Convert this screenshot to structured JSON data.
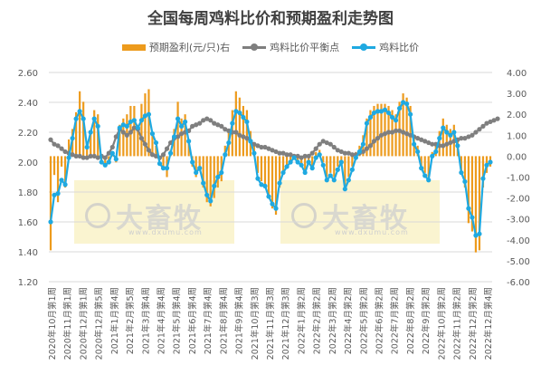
{
  "chart_data": {
    "type": "bar+line",
    "title": "全国每周鸡料比价和预期盈利走势图",
    "legend": [
      "预期盈利(元/只)右",
      "鸡料比价平衡点",
      "鸡料比价"
    ],
    "left_axis": {
      "min": 1.2,
      "max": 2.6,
      "ticks": [
        "2.60",
        "2.40",
        "2.20",
        "2.00",
        "1.80",
        "1.60",
        "1.40",
        "1.20"
      ]
    },
    "right_axis": {
      "min": -6,
      "max": 4,
      "ticks": [
        "4.00",
        "3.00",
        "2.00",
        "1.00",
        "0.00",
        "-1.00",
        "-2.00",
        "-3.00",
        "-4.00",
        "-5.00",
        "-6.00"
      ]
    },
    "x_ticks": [
      "2020年10月第1周",
      "2020年11月第1周",
      "2020年12月第1周",
      "2020年12月第5周",
      "2021年1月第4周",
      "2021年2月第5周",
      "2021年3月第4周",
      "2021年4月第4周",
      "2021年5月第4周",
      "2021年6月第4周",
      "2021年7月第4周",
      "2021年8月第4周",
      "2021年9月第4周",
      "2021年10月第3周",
      "2021年11月第3周",
      "2021年12月第3周",
      "2022年1月第2周",
      "2022年2月第2周",
      "2022年3月第2周",
      "2022年4月第2周",
      "2022年5月第2周",
      "2022年6月第2周",
      "2022年7月第2周",
      "2022年8月第2周",
      "2022年9月第2周",
      "2022年10月第2周",
      "2022年11月第2周",
      "2022年12月第2周",
      "2022年12月第4周"
    ],
    "series": [
      {
        "name": "预期盈利(元/只)右",
        "axis": "right",
        "type": "bar",
        "values": [
          -4.5,
          -0.9,
          -2.2,
          -0.5,
          -1.5,
          0.8,
          1.3,
          2.1,
          3.1,
          2.6,
          0.5,
          1.2,
          2.2,
          2.0,
          -0.2,
          -0.5,
          -0.2,
          0.0,
          -0.3,
          1.5,
          1.8,
          2.0,
          2.4,
          2.4,
          1.5,
          2.5,
          3.0,
          3.2,
          1.0,
          0.5,
          -0.2,
          -0.5,
          -1.0,
          0.3,
          1.3,
          2.6,
          1.8,
          2.0,
          0.8,
          -0.5,
          -1.0,
          -0.5,
          -1.5,
          -2.2,
          -2.4,
          -2.0,
          -1.5,
          -1.2,
          0.5,
          1.3,
          2.2,
          3.1,
          2.8,
          2.4,
          2.2,
          1.2,
          0.5,
          -0.8,
          -1.2,
          -1.5,
          -2.0,
          -2.5,
          -2.8,
          -1.5,
          -0.8,
          -0.5,
          -0.2,
          0.0,
          -0.3,
          -0.5,
          -0.8,
          -0.3,
          -0.6,
          0.2,
          0.3,
          -0.3,
          -1.0,
          -0.8,
          -1.0,
          -0.5,
          -0.2,
          -1.5,
          -1.0,
          -0.5,
          0.2,
          0.5,
          1.0,
          1.8,
          2.2,
          2.4,
          2.5,
          2.5,
          2.5,
          2.4,
          2.2,
          2.0,
          2.6,
          3.0,
          2.8,
          2.4,
          1.0,
          0.5,
          -0.5,
          -0.8,
          -1.0,
          0.2,
          0.5,
          1.2,
          1.8,
          1.5,
          1.3,
          1.5,
          0.8,
          -0.8,
          -1.5,
          -3.2,
          -3.6,
          -4.6,
          -4.5,
          -1.5,
          -0.8,
          -0.5
        ]
      },
      {
        "name": "鸡料比价平衡点",
        "axis": "left",
        "type": "line",
        "values": [
          2.15,
          2.12,
          2.11,
          2.09,
          2.07,
          2.06,
          2.05,
          2.04,
          2.04,
          2.03,
          2.03,
          2.04,
          2.04,
          2.03,
          2.04,
          2.03,
          2.06,
          2.1,
          2.17,
          2.22,
          2.2,
          2.18,
          2.2,
          2.23,
          2.22,
          2.16,
          2.12,
          2.08,
          2.05,
          2.04,
          2.03,
          2.05,
          2.09,
          2.13,
          2.16,
          2.17,
          2.19,
          2.2,
          2.21,
          2.24,
          2.25,
          2.26,
          2.28,
          2.29,
          2.28,
          2.26,
          2.25,
          2.24,
          2.22,
          2.21,
          2.2,
          2.2,
          2.18,
          2.17,
          2.16,
          2.14,
          2.12,
          2.11,
          2.1,
          2.1,
          2.09,
          2.08,
          2.07,
          2.06,
          2.06,
          2.05,
          2.05,
          2.04,
          2.04,
          2.03,
          2.04,
          2.04,
          2.06,
          2.09,
          2.12,
          2.14,
          2.13,
          2.12,
          2.1,
          2.08,
          2.07,
          2.06,
          2.06,
          2.05,
          2.05,
          2.06,
          2.07,
          2.09,
          2.11,
          2.14,
          2.16,
          2.18,
          2.19,
          2.2,
          2.2,
          2.21,
          2.21,
          2.2,
          2.19,
          2.18,
          2.17,
          2.16,
          2.15,
          2.14,
          2.13,
          2.12,
          2.12,
          2.11,
          2.11,
          2.12,
          2.13,
          2.14,
          2.15,
          2.16,
          2.16,
          2.17,
          2.18,
          2.2,
          2.22,
          2.24,
          2.26,
          2.27,
          2.28,
          2.29
        ]
      },
      {
        "name": "鸡料比价",
        "axis": "left",
        "type": "line",
        "values": [
          1.6,
          1.78,
          1.79,
          1.88,
          1.85,
          2.03,
          2.16,
          2.29,
          2.34,
          2.29,
          2.1,
          2.2,
          2.29,
          2.24,
          2.0,
          1.98,
          2.0,
          2.06,
          2.02,
          2.23,
          2.25,
          2.24,
          2.27,
          2.28,
          2.23,
          2.28,
          2.31,
          2.32,
          2.19,
          2.13,
          1.99,
          1.96,
          1.96,
          2.06,
          2.17,
          2.29,
          2.24,
          2.27,
          2.14,
          2.0,
          1.93,
          1.96,
          1.86,
          1.78,
          1.74,
          1.84,
          1.9,
          1.93,
          2.05,
          2.13,
          2.26,
          2.34,
          2.33,
          2.3,
          2.27,
          2.14,
          2.06,
          1.89,
          1.85,
          1.84,
          1.77,
          1.72,
          1.69,
          1.86,
          1.93,
          1.97,
          2.0,
          2.03,
          2.0,
          1.98,
          1.93,
          2.0,
          1.96,
          2.03,
          2.05,
          1.98,
          1.88,
          1.91,
          1.88,
          1.95,
          2.0,
          1.82,
          1.88,
          1.95,
          2.03,
          2.07,
          2.12,
          2.26,
          2.3,
          2.33,
          2.34,
          2.34,
          2.35,
          2.33,
          2.3,
          2.28,
          2.36,
          2.4,
          2.39,
          2.32,
          2.12,
          2.07,
          1.96,
          1.91,
          1.88,
          2.04,
          2.07,
          2.16,
          2.23,
          2.2,
          2.18,
          2.2,
          2.11,
          1.93,
          1.87,
          1.69,
          1.63,
          1.51,
          1.52,
          1.89,
          1.98,
          2.0
        ]
      }
    ],
    "colors": {
      "bar": "#ED9B1D",
      "balance": "#7F7F7F",
      "price": "#1FA9E1"
    },
    "grid": true
  },
  "watermark": {
    "text": "大畜牧",
    "url": "www.dxumu.com"
  }
}
